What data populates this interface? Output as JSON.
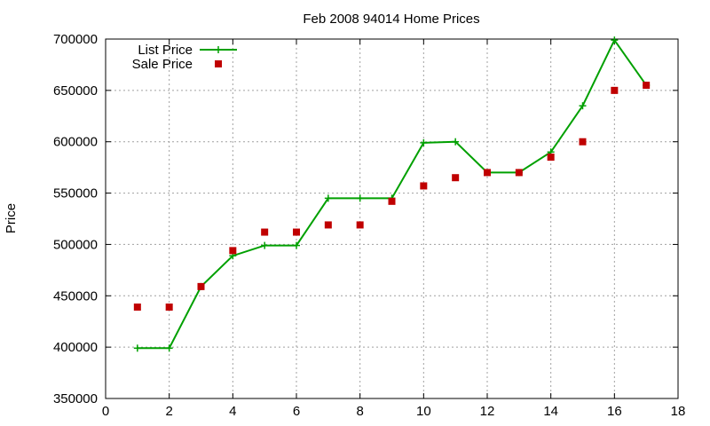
{
  "chart_data": {
    "type": "line",
    "title": "Feb 2008 94014 Home Prices",
    "xlabel": "",
    "ylabel": "Price",
    "xlim": [
      0,
      18
    ],
    "ylim": [
      350000,
      700000
    ],
    "xticks": [
      0,
      2,
      4,
      6,
      8,
      10,
      12,
      14,
      16,
      18
    ],
    "yticks": [
      350000,
      400000,
      450000,
      500000,
      550000,
      600000,
      650000,
      700000
    ],
    "grid": true,
    "legend_position": "top-left",
    "x": [
      1,
      2,
      3,
      4,
      5,
      6,
      7,
      8,
      9,
      10,
      11,
      12,
      13,
      14,
      15,
      16,
      17
    ],
    "series": [
      {
        "name": "List Price",
        "style": "lines+points",
        "color": "#00a000",
        "values": [
          399000,
          399000,
          459000,
          489000,
          499000,
          499000,
          545000,
          545000,
          545000,
          599000,
          600000,
          570000,
          570000,
          590000,
          635000,
          699000,
          655000
        ]
      },
      {
        "name": "Sale Price",
        "style": "points",
        "color": "#c00000",
        "values": [
          439000,
          439000,
          459000,
          494000,
          512000,
          512000,
          519000,
          519000,
          542000,
          557000,
          565000,
          570000,
          570000,
          585000,
          600000,
          650000,
          655000
        ]
      }
    ]
  }
}
